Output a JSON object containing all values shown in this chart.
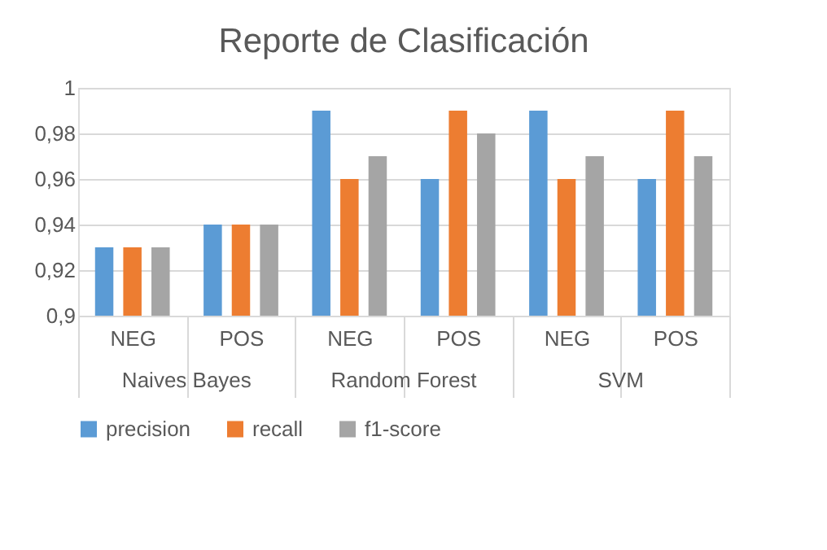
{
  "chart_data": {
    "type": "bar",
    "title": "Reporte de Clasificación",
    "categories": [
      "NEG",
      "POS",
      "NEG",
      "POS",
      "NEG",
      "POS"
    ],
    "annotations": [
      "Naives Bayes",
      "Random Forest",
      "SVM"
    ],
    "series": [
      {
        "name": "precision",
        "color": "#5b9bd5",
        "values": [
          0.93,
          0.94,
          0.99,
          0.96,
          0.99,
          0.96
        ]
      },
      {
        "name": "recall",
        "color": "#ed7d31",
        "values": [
          0.93,
          0.94,
          0.96,
          0.99,
          0.96,
          0.99
        ]
      },
      {
        "name": "f1-score",
        "color": "#a5a5a5",
        "values": [
          0.93,
          0.94,
          0.97,
          0.98,
          0.97,
          0.97
        ]
      }
    ],
    "ylim": [
      0.9,
      1
    ],
    "yticks": [
      {
        "value": 0.9,
        "label": "0,9"
      },
      {
        "value": 0.92,
        "label": "0,92"
      },
      {
        "value": 0.94,
        "label": "0,94"
      },
      {
        "value": 0.96,
        "label": "0,96"
      },
      {
        "value": 0.98,
        "label": "0,98"
      },
      {
        "value": 1,
        "label": "1"
      }
    ],
    "grid": "y",
    "legend": "bottom"
  }
}
